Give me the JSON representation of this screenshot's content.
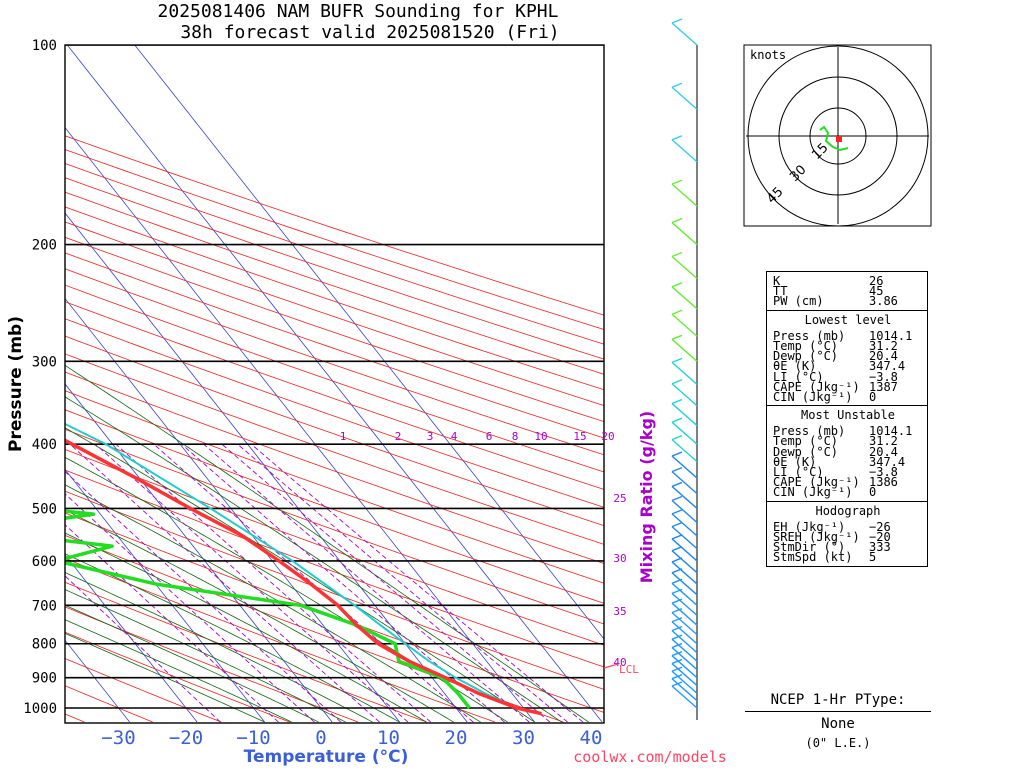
{
  "title_line1": "2025081406 NAM BUFR Sounding for KPHL",
  "title_line2": "38h forecast valid 2025081520 (Fri)",
  "credit": "coolwx.com/models",
  "colors": {
    "temp": "#ff3333",
    "dewpoint": "#22dd22",
    "parcel": "#22cccc",
    "isotherm": "#3344cc",
    "dry_adiabat": "#ee2222",
    "moist_adiabat": "#116611",
    "mixing": "#aa00cc",
    "mixing_label": "#aa00cc"
  },
  "chart_data": {
    "type": "skew-t",
    "xlabel": "Temperature (°C)",
    "ylabel": "Pressure (mb)",
    "mixing_label": "Mixing Ratio (g/kg)",
    "pressure_ticks": [
      100,
      200,
      300,
      400,
      500,
      600,
      700,
      800,
      900,
      1000
    ],
    "temp_ticks": [
      -30,
      -20,
      -10,
      0,
      10,
      20,
      30,
      40
    ],
    "temp_tick_labels": [
      "−30",
      "−20",
      "−10",
      "0",
      "10",
      "20",
      "30",
      "40"
    ],
    "mixing_ratio_labels": [
      "1",
      "2",
      "3",
      "4",
      "6",
      "8",
      "10",
      "15",
      "20"
    ],
    "upper_labels": [
      "25",
      "30",
      "35",
      "40"
    ],
    "lcl_label": "LCL",
    "temperature": [
      [
        1020,
        32
      ],
      [
        1000,
        29
      ],
      [
        950,
        25
      ],
      [
        900,
        22
      ],
      [
        850,
        18.5
      ],
      [
        800,
        16
      ],
      [
        750,
        15
      ],
      [
        700,
        14.5
      ],
      [
        650,
        13
      ],
      [
        600,
        11
      ],
      [
        550,
        8.5
      ],
      [
        500,
        4
      ],
      [
        450,
        -0.5
      ],
      [
        400,
        -6
      ],
      [
        350,
        -12
      ],
      [
        300,
        -19
      ],
      [
        250,
        -28
      ],
      [
        200,
        -40
      ],
      [
        170,
        -49
      ],
      [
        150,
        -56
      ],
      [
        130,
        -61
      ],
      [
        115,
        -63
      ],
      [
        100,
        -63
      ]
    ],
    "dewpoint": [
      [
        1000,
        22
      ],
      [
        950,
        22
      ],
      [
        900,
        21.5
      ],
      [
        850,
        17
      ],
      [
        800,
        18.5
      ],
      [
        750,
        15
      ],
      [
        700,
        9
      ],
      [
        650,
        -10
      ],
      [
        600,
        -22
      ],
      [
        570,
        -12
      ],
      [
        540,
        -30
      ],
      [
        510,
        -11
      ],
      [
        480,
        -34
      ],
      [
        460,
        -19
      ],
      [
        430,
        -35
      ],
      [
        410,
        -25
      ],
      [
        380,
        -42
      ],
      [
        350,
        -32
      ],
      [
        320,
        -30
      ],
      [
        300,
        -24
      ],
      [
        280,
        -6
      ],
      [
        250,
        -10
      ],
      [
        220,
        -20
      ],
      [
        200,
        -25
      ],
      [
        185,
        -32
      ],
      [
        175,
        -42
      ],
      [
        160,
        -51
      ],
      [
        140,
        -56
      ]
    ],
    "parcel": [
      [
        1020,
        32
      ],
      [
        1000,
        29
      ],
      [
        950,
        26
      ],
      [
        900,
        23.5
      ],
      [
        850,
        21.5
      ],
      [
        800,
        20
      ],
      [
        750,
        18.5
      ],
      [
        700,
        17
      ],
      [
        600,
        13
      ],
      [
        500,
        7
      ],
      [
        400,
        -1
      ],
      [
        350,
        -8
      ],
      [
        300,
        -15
      ],
      [
        250,
        -25
      ],
      [
        200,
        -37
      ],
      [
        150,
        -52
      ],
      [
        100,
        -72
      ]
    ],
    "hodograph": {
      "units_label": "knots",
      "ring_labels": [
        "15",
        "30",
        "45"
      ]
    },
    "wind_profile": "barbs along right margin, mostly light winds",
    "stats": {
      "K": "26",
      "TT": "45",
      "PW (cm)": "3.86",
      "lowest": {
        "title": "Lowest level",
        "Press (mb)": "1014.1",
        "Temp (°C)": "31.2",
        "Dewp (°C)": "20.4",
        "θE (K)": "347.4",
        "LI (°C)": "−3.8",
        "CAPE (Jkg⁻¹)": "1387",
        "CIN (Jkg⁻¹)": "0"
      },
      "most_unstable": {
        "title": "Most Unstable",
        "Press (mb)": "1014.1",
        "Temp (°C)": "31.2",
        "Dewp (°C)": "20.4",
        "θE (K)": "347.4",
        "LI (°C)": "−3.8",
        "CAPE (Jkg⁻¹)": "1386",
        "CIN (Jkg⁻¹)": "0"
      },
      "hodograph": {
        "title": "Hodograph",
        "EH (Jkg⁻¹)": "−26",
        "SREH (Jkg⁻¹)": "−20",
        "StmDir (°)": "333",
        "StmSpd (kt)": "5"
      }
    },
    "ptype": {
      "title": "NCEP 1-Hr PType:",
      "value": "None",
      "snow": "(0\" L.E.)"
    }
  }
}
